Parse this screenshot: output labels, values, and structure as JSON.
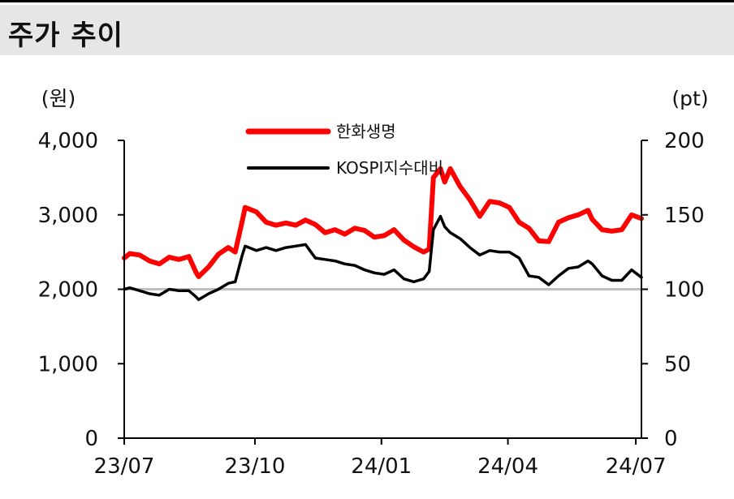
{
  "header": {
    "title": "주가 추이"
  },
  "chart_data": {
    "type": "line",
    "title": "주가 추이",
    "left_unit": "(원)",
    "right_unit": "(pt)",
    "x_labels": [
      "23/07",
      "23/10",
      "24/01",
      "24/04",
      "24/07"
    ],
    "x_range": [
      "2023-07-03",
      "2024-07-05"
    ],
    "y_left_ticks": [
      "4,000",
      "3,000",
      "2,000",
      "1,000",
      "0"
    ],
    "y_left_range": [
      0,
      4000
    ],
    "y_right_ticks": [
      "200",
      "150",
      "100",
      "50",
      "0"
    ],
    "y_right_range": [
      0,
      200
    ],
    "baseline_right": 100,
    "grid": false,
    "legend_position": "top-center",
    "series": [
      {
        "name": "한화생명",
        "axis": "left",
        "color": "#ff0000",
        "points": [
          [
            "2023-07-03",
            2420
          ],
          [
            "2023-07-07",
            2480
          ],
          [
            "2023-07-14",
            2460
          ],
          [
            "2023-07-21",
            2380
          ],
          [
            "2023-07-28",
            2340
          ],
          [
            "2023-08-04",
            2430
          ],
          [
            "2023-08-11",
            2400
          ],
          [
            "2023-08-18",
            2440
          ],
          [
            "2023-08-23",
            2230
          ],
          [
            "2023-08-25",
            2170
          ],
          [
            "2023-09-01",
            2300
          ],
          [
            "2023-09-08",
            2470
          ],
          [
            "2023-09-15",
            2560
          ],
          [
            "2023-09-20",
            2500
          ],
          [
            "2023-09-25",
            2920
          ],
          [
            "2023-09-27",
            3100
          ],
          [
            "2023-10-05",
            3040
          ],
          [
            "2023-10-12",
            2900
          ],
          [
            "2023-10-19",
            2860
          ],
          [
            "2023-10-26",
            2890
          ],
          [
            "2023-11-02",
            2860
          ],
          [
            "2023-11-09",
            2930
          ],
          [
            "2023-11-16",
            2870
          ],
          [
            "2023-11-23",
            2760
          ],
          [
            "2023-11-30",
            2800
          ],
          [
            "2023-12-07",
            2740
          ],
          [
            "2023-12-14",
            2820
          ],
          [
            "2023-12-21",
            2790
          ],
          [
            "2023-12-28",
            2700
          ],
          [
            "2024-01-04",
            2720
          ],
          [
            "2024-01-11",
            2800
          ],
          [
            "2024-01-18",
            2660
          ],
          [
            "2024-01-25",
            2570
          ],
          [
            "2024-02-01",
            2500
          ],
          [
            "2024-02-05",
            2540
          ],
          [
            "2024-02-08",
            3500
          ],
          [
            "2024-02-13",
            3620
          ],
          [
            "2024-02-16",
            3440
          ],
          [
            "2024-02-20",
            3620
          ],
          [
            "2024-02-27",
            3380
          ],
          [
            "2024-03-05",
            3200
          ],
          [
            "2024-03-12",
            2980
          ],
          [
            "2024-03-19",
            3180
          ],
          [
            "2024-03-26",
            3160
          ],
          [
            "2024-04-02",
            3100
          ],
          [
            "2024-04-09",
            2900
          ],
          [
            "2024-04-16",
            2820
          ],
          [
            "2024-04-23",
            2650
          ],
          [
            "2024-04-30",
            2640
          ],
          [
            "2024-05-07",
            2900
          ],
          [
            "2024-05-14",
            2960
          ],
          [
            "2024-05-21",
            3000
          ],
          [
            "2024-05-28",
            3060
          ],
          [
            "2024-05-31",
            2940
          ],
          [
            "2024-06-07",
            2800
          ],
          [
            "2024-06-14",
            2780
          ],
          [
            "2024-06-21",
            2800
          ],
          [
            "2024-06-28",
            3000
          ],
          [
            "2024-07-05",
            2950
          ]
        ]
      },
      {
        "name": "KOSPI지수대비",
        "axis": "right",
        "color": "#000000",
        "points": [
          [
            "2023-07-03",
            100
          ],
          [
            "2023-07-07",
            101
          ],
          [
            "2023-07-14",
            99
          ],
          [
            "2023-07-21",
            97
          ],
          [
            "2023-07-28",
            96
          ],
          [
            "2023-08-04",
            100
          ],
          [
            "2023-08-11",
            99
          ],
          [
            "2023-08-18",
            99
          ],
          [
            "2023-08-23",
            95
          ],
          [
            "2023-08-25",
            93
          ],
          [
            "2023-09-01",
            97
          ],
          [
            "2023-09-08",
            100
          ],
          [
            "2023-09-15",
            104
          ],
          [
            "2023-09-20",
            105
          ],
          [
            "2023-09-25",
            123
          ],
          [
            "2023-09-27",
            129
          ],
          [
            "2023-10-05",
            126
          ],
          [
            "2023-10-12",
            128
          ],
          [
            "2023-10-19",
            126
          ],
          [
            "2023-10-26",
            128
          ],
          [
            "2023-11-02",
            129
          ],
          [
            "2023-11-09",
            130
          ],
          [
            "2023-11-16",
            121
          ],
          [
            "2023-11-23",
            120
          ],
          [
            "2023-11-30",
            119
          ],
          [
            "2023-12-07",
            117
          ],
          [
            "2023-12-14",
            116
          ],
          [
            "2023-12-21",
            113
          ],
          [
            "2023-12-28",
            111
          ],
          [
            "2024-01-04",
            110
          ],
          [
            "2024-01-11",
            113
          ],
          [
            "2024-01-18",
            107
          ],
          [
            "2024-01-25",
            105
          ],
          [
            "2024-02-01",
            107
          ],
          [
            "2024-02-05",
            112
          ],
          [
            "2024-02-08",
            140
          ],
          [
            "2024-02-13",
            149
          ],
          [
            "2024-02-16",
            142
          ],
          [
            "2024-02-20",
            138
          ],
          [
            "2024-02-27",
            134
          ],
          [
            "2024-03-05",
            128
          ],
          [
            "2024-03-12",
            123
          ],
          [
            "2024-03-19",
            126
          ],
          [
            "2024-03-26",
            125
          ],
          [
            "2024-04-02",
            125
          ],
          [
            "2024-04-09",
            121
          ],
          [
            "2024-04-16",
            109
          ],
          [
            "2024-04-23",
            108
          ],
          [
            "2024-04-30",
            103
          ],
          [
            "2024-05-07",
            109
          ],
          [
            "2024-05-14",
            114
          ],
          [
            "2024-05-21",
            115
          ],
          [
            "2024-05-28",
            119
          ],
          [
            "2024-05-31",
            117
          ],
          [
            "2024-06-07",
            109
          ],
          [
            "2024-06-14",
            106
          ],
          [
            "2024-06-21",
            106
          ],
          [
            "2024-06-28",
            113
          ],
          [
            "2024-07-05",
            108
          ]
        ]
      }
    ]
  }
}
